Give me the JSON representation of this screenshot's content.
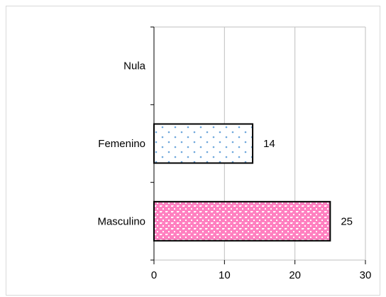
{
  "chart_data": {
    "type": "bar",
    "orientation": "horizontal",
    "categories": [
      "Masculino",
      "Femenino",
      "Nula"
    ],
    "values": [
      25,
      14,
      0
    ],
    "data_labels": [
      "25",
      "14",
      ""
    ],
    "xlim": [
      0,
      30
    ],
    "x_ticks": [
      0,
      10,
      20,
      30
    ],
    "grid": true,
    "series_styles": [
      {
        "category": "Masculino",
        "fill": "#ff80c0",
        "pattern": "pink-checker"
      },
      {
        "category": "Femenino",
        "fill": "#ffffff",
        "pattern": "blue-dots"
      },
      {
        "category": "Nula",
        "fill": "#ffffff",
        "pattern": "none"
      }
    ],
    "colors": {
      "grid": "#bfbfbf",
      "axis": "#000000",
      "bar_outline": "#000000",
      "frame": "#d9d9d9"
    }
  }
}
